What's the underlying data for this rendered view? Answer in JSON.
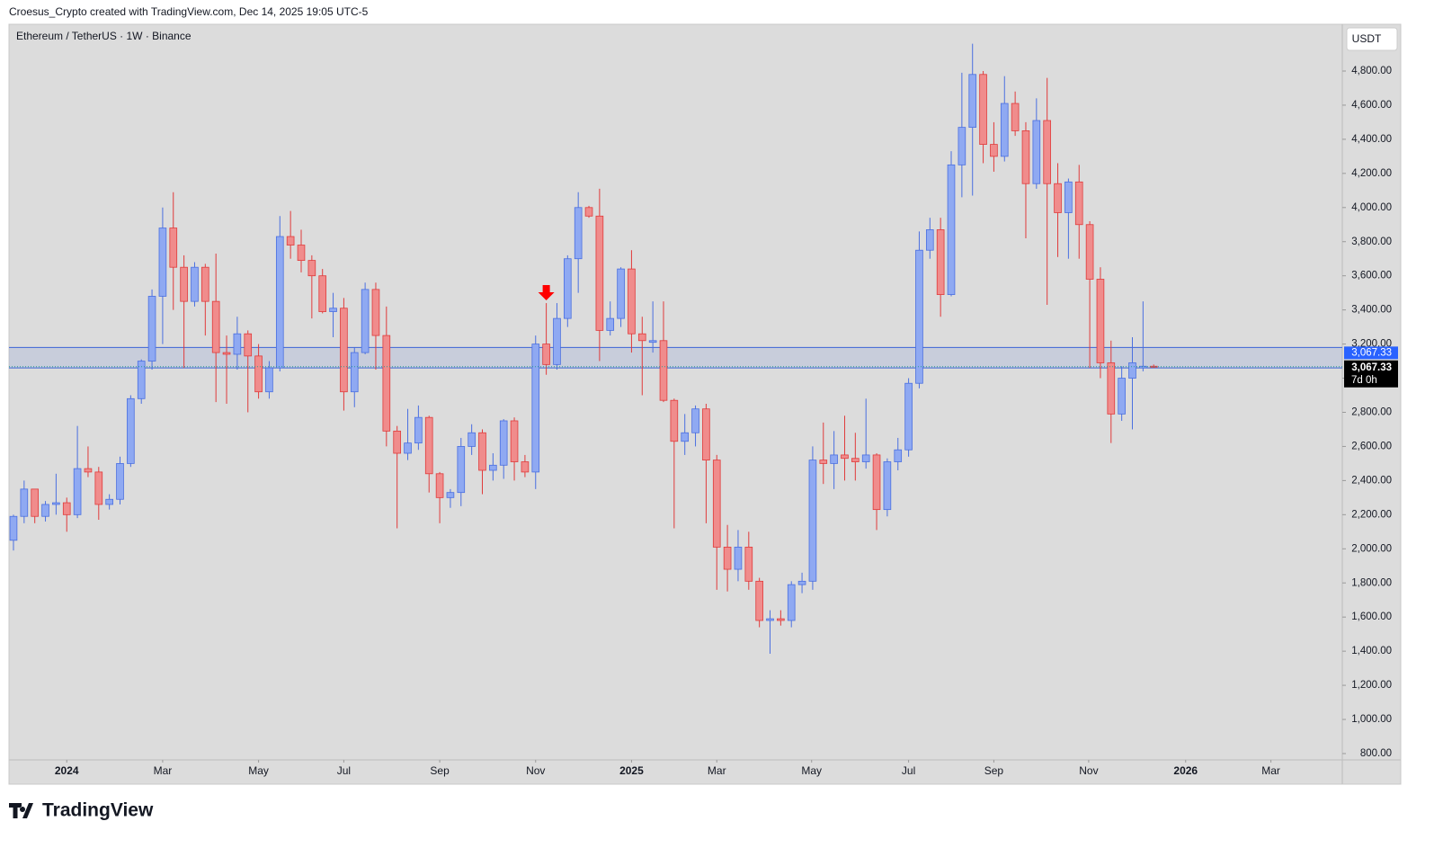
{
  "header": "Croesus_Crypto created with TradingView.com, Dec 14, 2025 19:05 UTC-5",
  "footer": "TradingView",
  "chart_data": {
    "type": "candlestick",
    "title": "Ethereum / TetherUS · 1W · Binance",
    "currency": "USDT",
    "up_color": "#8fa9f2",
    "up_border": "#4a6fe0",
    "down_color": "#f08c8c",
    "down_border": "#e03b3b",
    "background": "#dcdcdc",
    "categories": [
      null,
      null,
      null,
      null,
      null,
      null,
      null,
      null,
      null,
      null,
      null,
      null,
      null,
      null,
      null,
      null,
      null,
      null,
      null,
      null,
      null,
      null,
      null,
      null,
      null,
      null,
      null,
      null,
      null,
      null,
      null,
      null,
      null,
      null,
      null,
      null,
      null,
      null,
      null,
      null,
      null,
      null,
      null,
      null,
      null,
      null,
      null,
      null,
      null,
      null,
      null,
      null,
      null,
      null,
      null,
      null,
      null,
      null,
      null,
      null,
      null,
      null,
      null,
      null,
      null,
      null,
      null,
      null,
      null,
      null,
      null,
      null,
      null,
      null,
      null,
      null,
      null,
      null,
      null,
      null,
      null,
      null,
      null,
      null,
      null,
      null,
      null,
      null,
      null,
      null,
      null,
      null,
      null,
      null,
      null,
      null,
      null,
      null,
      null,
      null,
      null,
      null,
      null,
      null,
      null,
      null,
      null,
      null
    ],
    "ohlc": [
      [
        2050,
        2200,
        1990,
        2190
      ],
      [
        2190,
        2400,
        2150,
        2350
      ],
      [
        2350,
        2350,
        2150,
        2190
      ],
      [
        2190,
        2280,
        2160,
        2260
      ],
      [
        2260,
        2440,
        2200,
        2270
      ],
      [
        2270,
        2300,
        2100,
        2200
      ],
      [
        2200,
        2720,
        2180,
        2470
      ],
      [
        2470,
        2600,
        2420,
        2450
      ],
      [
        2450,
        2480,
        2170,
        2260
      ],
      [
        2260,
        2320,
        2230,
        2290
      ],
      [
        2290,
        2540,
        2260,
        2500
      ],
      [
        2500,
        2900,
        2480,
        2880
      ],
      [
        2880,
        3110,
        2850,
        3100
      ],
      [
        3100,
        3520,
        3050,
        3480
      ],
      [
        3480,
        4000,
        3200,
        3880
      ],
      [
        3880,
        4090,
        3400,
        3650
      ],
      [
        3650,
        3720,
        3060,
        3450
      ],
      [
        3450,
        3680,
        3420,
        3650
      ],
      [
        3650,
        3670,
        3250,
        3450
      ],
      [
        3450,
        3730,
        2860,
        3150
      ],
      [
        3150,
        3250,
        2850,
        3140
      ],
      [
        3140,
        3360,
        3050,
        3260
      ],
      [
        3260,
        3280,
        2800,
        3130
      ],
      [
        3130,
        3200,
        2880,
        2920
      ],
      [
        2920,
        3100,
        2880,
        3060
      ],
      [
        3060,
        3950,
        3040,
        3830
      ],
      [
        3830,
        3980,
        3700,
        3780
      ],
      [
        3780,
        3870,
        3620,
        3690
      ],
      [
        3690,
        3720,
        3350,
        3600
      ],
      [
        3600,
        3640,
        3380,
        3390
      ],
      [
        3390,
        3500,
        3240,
        3410
      ],
      [
        3410,
        3470,
        2810,
        2920
      ],
      [
        2920,
        3180,
        2830,
        3150
      ],
      [
        3150,
        3560,
        3140,
        3520
      ],
      [
        3520,
        3560,
        3050,
        3250
      ],
      [
        3250,
        3420,
        2600,
        2690
      ],
      [
        2690,
        2720,
        2120,
        2560
      ],
      [
        2560,
        2820,
        2520,
        2620
      ],
      [
        2620,
        2840,
        2580,
        2770
      ],
      [
        2770,
        2780,
        2330,
        2440
      ],
      [
        2440,
        2450,
        2150,
        2300
      ],
      [
        2300,
        2350,
        2240,
        2330
      ],
      [
        2330,
        2650,
        2250,
        2600
      ],
      [
        2600,
        2730,
        2550,
        2680
      ],
      [
        2680,
        2700,
        2320,
        2460
      ],
      [
        2460,
        2560,
        2400,
        2490
      ],
      [
        2490,
        2760,
        2410,
        2750
      ],
      [
        2750,
        2770,
        2400,
        2510
      ],
      [
        2510,
        2550,
        2420,
        2450
      ],
      [
        2450,
        3250,
        2350,
        3200
      ],
      [
        3200,
        3440,
        3020,
        3080
      ],
      [
        3080,
        3440,
        3050,
        3350
      ],
      [
        3350,
        3720,
        3300,
        3700
      ],
      [
        3700,
        4090,
        3500,
        4000
      ],
      [
        4000,
        4010,
        3940,
        3950
      ],
      [
        3950,
        4110,
        3100,
        3280
      ],
      [
        3280,
        3450,
        3250,
        3350
      ],
      [
        3350,
        3650,
        3300,
        3640
      ],
      [
        3640,
        3750,
        3150,
        3260
      ],
      [
        3260,
        3360,
        2900,
        3220
      ],
      [
        3210,
        3450,
        3150,
        3220
      ],
      [
        3220,
        3450,
        2860,
        2870
      ],
      [
        2870,
        2880,
        2120,
        2630
      ],
      [
        2630,
        2790,
        2550,
        2680
      ],
      [
        2680,
        2840,
        2600,
        2820
      ],
      [
        2820,
        2850,
        2150,
        2520
      ],
      [
        2520,
        2550,
        1760,
        2010
      ],
      [
        2010,
        2140,
        1750,
        1880
      ],
      [
        1880,
        2110,
        1810,
        2010
      ],
      [
        2010,
        2100,
        1760,
        1810
      ],
      [
        1810,
        1830,
        1540,
        1580
      ],
      [
        1580,
        1640,
        1385,
        1590
      ],
      [
        1590,
        1640,
        1550,
        1580
      ],
      [
        1580,
        1810,
        1540,
        1790
      ],
      [
        1790,
        1860,
        1740,
        1810
      ],
      [
        1810,
        2600,
        1760,
        2520
      ],
      [
        2520,
        2740,
        2380,
        2500
      ],
      [
        2500,
        2690,
        2350,
        2550
      ],
      [
        2550,
        2780,
        2400,
        2530
      ],
      [
        2530,
        2680,
        2400,
        2510
      ],
      [
        2510,
        2880,
        2470,
        2550
      ],
      [
        2550,
        2560,
        2110,
        2230
      ],
      [
        2230,
        2530,
        2190,
        2510
      ],
      [
        2510,
        2650,
        2460,
        2580
      ],
      [
        2580,
        3000,
        2540,
        2970
      ],
      [
        2970,
        3860,
        2940,
        3750
      ],
      [
        3750,
        3940,
        3700,
        3870
      ],
      [
        3870,
        3940,
        3360,
        3490
      ],
      [
        3490,
        4330,
        3480,
        4250
      ],
      [
        4250,
        4790,
        4060,
        4470
      ],
      [
        4470,
        4960,
        4070,
        4780
      ],
      [
        4780,
        4800,
        4260,
        4370
      ],
      [
        4370,
        4500,
        4210,
        4300
      ],
      [
        4300,
        4770,
        4270,
        4610
      ],
      [
        4610,
        4680,
        4420,
        4450
      ],
      [
        4450,
        4500,
        3820,
        4140
      ],
      [
        4140,
        4640,
        4110,
        4510
      ],
      [
        4510,
        4760,
        3430,
        4140
      ],
      [
        4140,
        4260,
        3710,
        3970
      ],
      [
        3970,
        4170,
        3700,
        4150
      ],
      [
        4150,
        4250,
        3700,
        3900
      ],
      [
        3900,
        3920,
        3060,
        3580
      ],
      [
        3580,
        3650,
        3000,
        3090
      ],
      [
        3090,
        3220,
        2620,
        2790
      ],
      [
        2790,
        3070,
        2750,
        3000
      ],
      [
        3000,
        3240,
        2700,
        3090
      ],
      [
        3060,
        3450,
        3040,
        3070
      ],
      [
        3070,
        3080,
        3060,
        3067.33
      ]
    ],
    "zone": {
      "low": 3060,
      "high": 3180,
      "color": "#3d63d6"
    },
    "last_price": {
      "value": 3067.33,
      "label": "3,067.33"
    },
    "countdown": "7d 0h",
    "ylim": [
      763,
      5074
    ],
    "yticks": [
      {
        "value": 800,
        "label": "800.00"
      },
      {
        "value": 1000,
        "label": "1,000.00"
      },
      {
        "value": 1200,
        "label": "1,200.00"
      },
      {
        "value": 1400,
        "label": "1,400.00"
      },
      {
        "value": 1600,
        "label": "1,600.00"
      },
      {
        "value": 1800,
        "label": "1,800.00"
      },
      {
        "value": 2000,
        "label": "2,000.00"
      },
      {
        "value": 2200,
        "label": "2,200.00"
      },
      {
        "value": 2400,
        "label": "2,400.00"
      },
      {
        "value": 2600,
        "label": "2,600.00"
      },
      {
        "value": 2800,
        "label": "2,800.00"
      },
      {
        "value": 3000,
        "label": "3,000.00"
      },
      {
        "value": 3200,
        "label": "3,200.00"
      },
      {
        "value": 3400,
        "label": "3,400.00"
      },
      {
        "value": 3600,
        "label": "3,600.00"
      },
      {
        "value": 3800,
        "label": "3,800.00"
      },
      {
        "value": 4000,
        "label": "4,000.00"
      },
      {
        "value": 4200,
        "label": "4,200.00"
      },
      {
        "value": 4400,
        "label": "4,400.00"
      },
      {
        "value": 4600,
        "label": "4,600.00"
      },
      {
        "value": 4800,
        "label": "4,800.00"
      }
    ],
    "xlim": [
      -0.42,
      124.7
    ],
    "xticks": [
      {
        "value": 5,
        "label": "2024"
      },
      {
        "value": 14,
        "label": "Mar"
      },
      {
        "value": 23,
        "label": "May"
      },
      {
        "value": 31,
        "label": "Jul"
      },
      {
        "value": 40,
        "label": "Sep"
      },
      {
        "value": 49,
        "label": "Nov"
      },
      {
        "value": 58,
        "label": "2025"
      },
      {
        "value": 66,
        "label": "Mar"
      },
      {
        "value": 74.9,
        "label": "May"
      },
      {
        "value": 84,
        "label": "Jul"
      },
      {
        "value": 92,
        "label": "Sep"
      },
      {
        "value": 100.9,
        "label": "Nov"
      },
      {
        "value": 110,
        "label": "2026"
      },
      {
        "value": 118,
        "label": "Mar"
      }
    ]
  }
}
